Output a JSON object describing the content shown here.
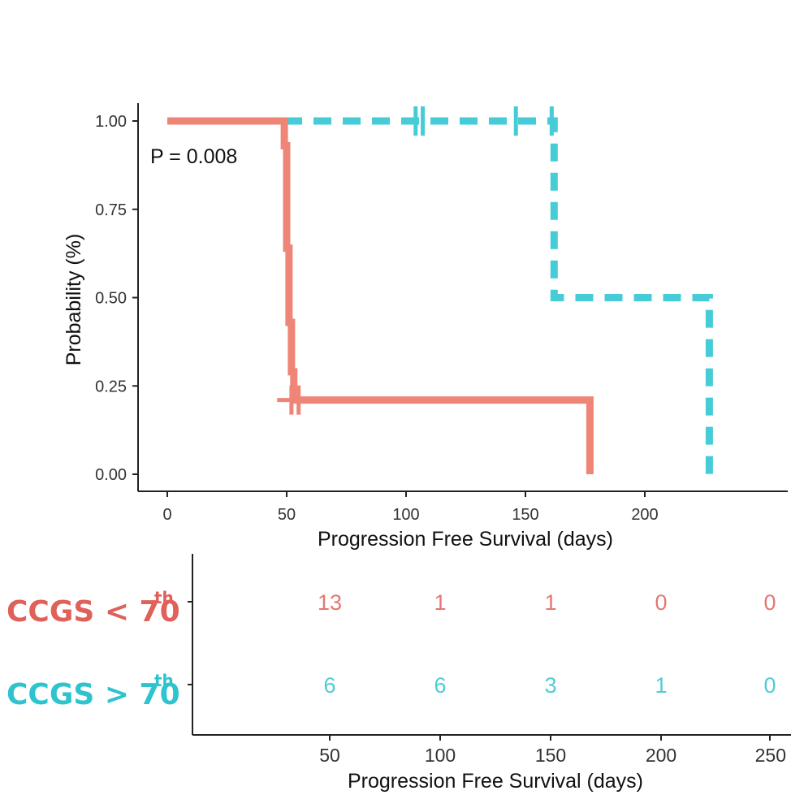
{
  "colors": {
    "group_low": "#EE8577",
    "group_high": "#45CCD6",
    "axis": "#222222",
    "label_low": "#E0605A",
    "label_high": "#2EC4CF"
  },
  "chart_data": [
    {
      "type": "line",
      "title": "",
      "xlabel": "Progression Free Survival (days)",
      "ylabel": "Probability (%)",
      "xlim": [
        -12,
        260
      ],
      "ylim": [
        -0.05,
        1.05
      ],
      "xticks": [
        "0",
        "50",
        "100",
        "150",
        "200"
      ],
      "yticks": [
        "0.00",
        "0.25",
        "0.50",
        "0.75",
        "1.00"
      ],
      "annotation": "P = 0.008",
      "series": [
        {
          "name": "CCGS < 70th",
          "color": "#EE8577",
          "dash": "solid",
          "steps": [
            [
              0,
              1.0
            ],
            [
              49,
              1.0
            ],
            [
              49,
              0.93
            ],
            [
              50,
              0.93
            ],
            [
              50,
              0.64
            ],
            [
              51,
              0.64
            ],
            [
              51,
              0.43
            ],
            [
              52,
              0.43
            ],
            [
              52,
              0.29
            ],
            [
              53,
              0.29
            ],
            [
              53,
              0.21
            ],
            [
              177,
              0.21
            ],
            [
              177,
              0.0
            ]
          ],
          "censored": [
            {
              "x": 52,
              "y": 0.21
            },
            {
              "x": 55,
              "y": 0.21
            }
          ]
        },
        {
          "name": "CCGS > 70th",
          "color": "#45CCD6",
          "dash": "dashed",
          "steps": [
            [
              0,
              1.0
            ],
            [
              162,
              1.0
            ],
            [
              162,
              0.5
            ],
            [
              227,
              0.5
            ],
            [
              227,
              0.0
            ]
          ],
          "censored": [
            {
              "x": 104,
              "y": 1.0
            },
            {
              "x": 107,
              "y": 1.0
            },
            {
              "x": 146,
              "y": 1.0
            },
            {
              "x": 161,
              "y": 1.0
            }
          ]
        }
      ]
    },
    {
      "type": "table",
      "title": "",
      "xlabel": "Progression Free Survival (days)",
      "xticks": [
        "50",
        "100",
        "150",
        "200",
        "250"
      ],
      "rows": [
        {
          "label": "CCGS < 70",
          "sup": "th",
          "color": "#E0605A",
          "values": [
            "13",
            "1",
            "1",
            "0",
            "0"
          ]
        },
        {
          "label": "CCGS > 70",
          "sup": "th",
          "color": "#2EC4CF",
          "values": [
            "6",
            "6",
            "3",
            "1",
            "0"
          ]
        }
      ]
    }
  ]
}
